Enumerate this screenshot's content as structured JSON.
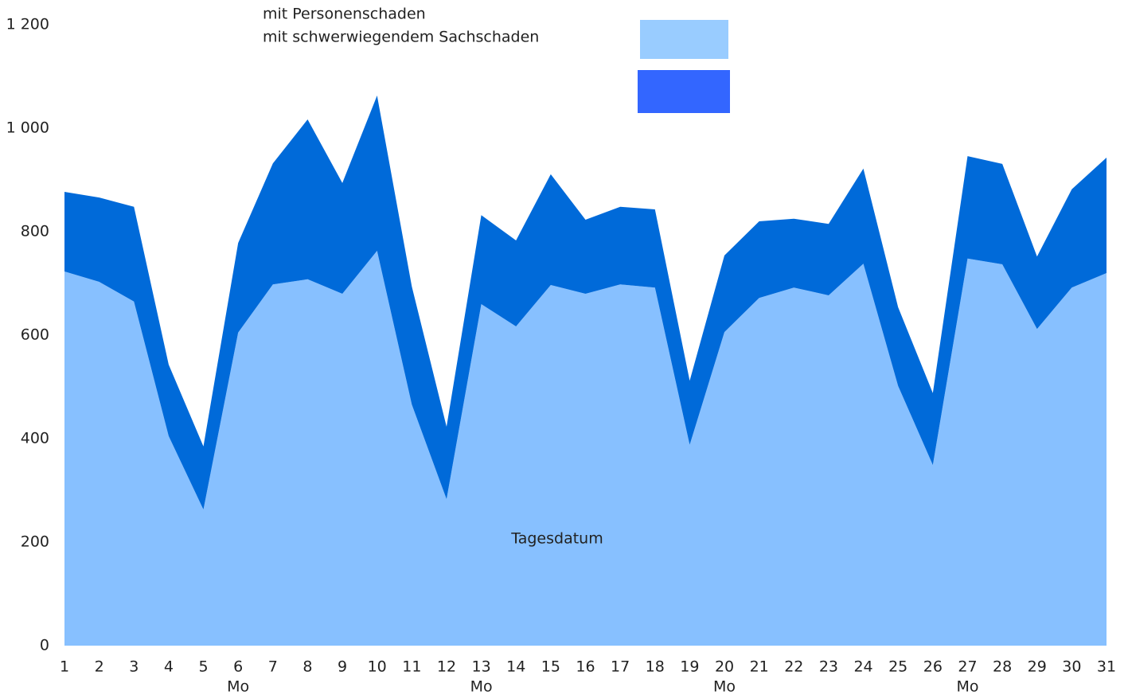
{
  "chart_data": {
    "type": "stacked_area",
    "x_label": "Tagesdatum",
    "categories": [
      "1",
      "2",
      "3",
      "4",
      "5",
      "6",
      "7",
      "8",
      "9",
      "10",
      "11",
      "12",
      "13",
      "14",
      "15",
      "16",
      "17",
      "18",
      "19",
      "20",
      "21",
      "22",
      "23",
      "24",
      "25",
      "26",
      "27",
      "28",
      "29",
      "30",
      "31"
    ],
    "weekday_labels": [
      null,
      null,
      null,
      null,
      null,
      "Mo",
      null,
      null,
      null,
      null,
      null,
      null,
      "Mo",
      null,
      null,
      null,
      null,
      null,
      null,
      "Mo",
      null,
      null,
      null,
      null,
      null,
      null,
      "Mo",
      null,
      null,
      null,
      null
    ],
    "series": [
      {
        "name": "mit Personenschaden",
        "color": "#87c0ff",
        "legend_color": "#99ccff",
        "values": [
          723,
          703,
          665,
          405,
          263,
          605,
          698,
          708,
          680,
          763,
          466,
          283,
          660,
          617,
          697,
          680,
          698,
          692,
          388,
          606,
          672,
          692,
          677,
          738,
          502,
          349,
          748,
          737,
          612,
          692,
          720
        ]
      },
      {
        "name": "mit schwerwiegendem Sachschaden",
        "color": "#006ad9",
        "legend_color": "#3366ff",
        "values": [
          154,
          163,
          183,
          138,
          122,
          173,
          234,
          309,
          214,
          300,
          228,
          140,
          172,
          166,
          214,
          143,
          150,
          151,
          124,
          148,
          148,
          133,
          138,
          184,
          152,
          139,
          198,
          194,
          140,
          190,
          223
        ]
      }
    ],
    "ylim": [
      0,
      1200
    ],
    "yticks": [
      0,
      200,
      400,
      600,
      800,
      {
        "value": 1000,
        "label": "1 000"
      },
      {
        "value": 1200,
        "label": "1 200"
      }
    ]
  }
}
